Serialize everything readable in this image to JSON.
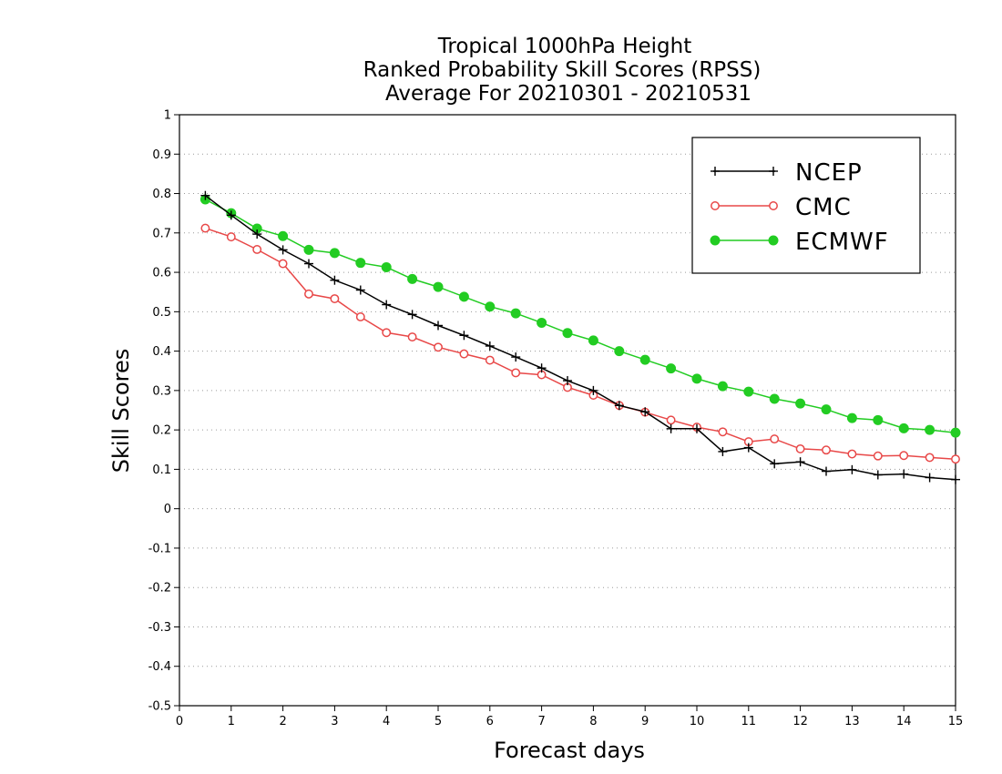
{
  "chart_data": {
    "type": "line",
    "title": [
      "Tropical 1000hPa Height",
      "Ranked Probability Skill Scores (RPSS)",
      "Average For 20210301 - 20210531"
    ],
    "xlabel": "Forecast days",
    "ylabel": "Skill Scores",
    "xlim": [
      0,
      15
    ],
    "ylim": [
      -0.5,
      1
    ],
    "x_ticks": [
      "0",
      "1",
      "2",
      "3",
      "4",
      "5",
      "6",
      "7",
      "8",
      "9",
      "10",
      "11",
      "12",
      "13",
      "14",
      "15"
    ],
    "y_ticks": [
      "-0.5",
      "-0.4",
      "-0.3",
      "-0.2",
      "-0.1",
      "0",
      "0.1",
      "0.2",
      "0.3",
      "0.4",
      "0.5",
      "0.6",
      "0.7",
      "0.8",
      "0.9",
      "1"
    ],
    "grid": "horizontal dotted",
    "legend_position": "top-right",
    "x": [
      0.5,
      1,
      1.5,
      2,
      2.5,
      3,
      3.5,
      4,
      4.5,
      5,
      5.5,
      6,
      6.5,
      7,
      7.5,
      8,
      8.5,
      9,
      9.5,
      10,
      10.5,
      11,
      11.5,
      12,
      12.5,
      13,
      13.5,
      14,
      14.5,
      15
    ],
    "series": [
      {
        "name": "NCEP",
        "color": "#000000",
        "marker": "plus",
        "values": [
          0.795,
          0.745,
          0.697,
          0.657,
          0.622,
          0.58,
          0.555,
          0.518,
          0.493,
          0.465,
          0.44,
          0.413,
          0.385,
          0.357,
          0.325,
          0.3,
          0.262,
          0.246,
          0.203,
          0.203,
          0.145,
          0.155,
          0.114,
          0.119,
          0.095,
          0.099,
          0.086,
          0.088,
          0.079,
          0.074
        ]
      },
      {
        "name": "CMC",
        "color": "#e84848",
        "marker": "open-circle",
        "values": [
          0.712,
          0.69,
          0.658,
          0.622,
          0.545,
          0.533,
          0.487,
          0.447,
          0.436,
          0.41,
          0.393,
          0.377,
          0.345,
          0.34,
          0.308,
          0.288,
          0.262,
          0.245,
          0.225,
          0.207,
          0.195,
          0.17,
          0.177,
          0.152,
          0.149,
          0.139,
          0.134,
          0.135,
          0.13,
          0.126
        ]
      },
      {
        "name": "ECMWF",
        "color": "#22cc22",
        "marker": "filled-circle",
        "values": [
          0.785,
          0.75,
          0.711,
          0.692,
          0.657,
          0.649,
          0.624,
          0.613,
          0.583,
          0.563,
          0.538,
          0.513,
          0.496,
          0.472,
          0.446,
          0.427,
          0.4,
          0.378,
          0.356,
          0.33,
          0.311,
          0.297,
          0.279,
          0.267,
          0.252,
          0.23,
          0.225,
          0.204,
          0.2,
          0.193
        ]
      }
    ]
  }
}
